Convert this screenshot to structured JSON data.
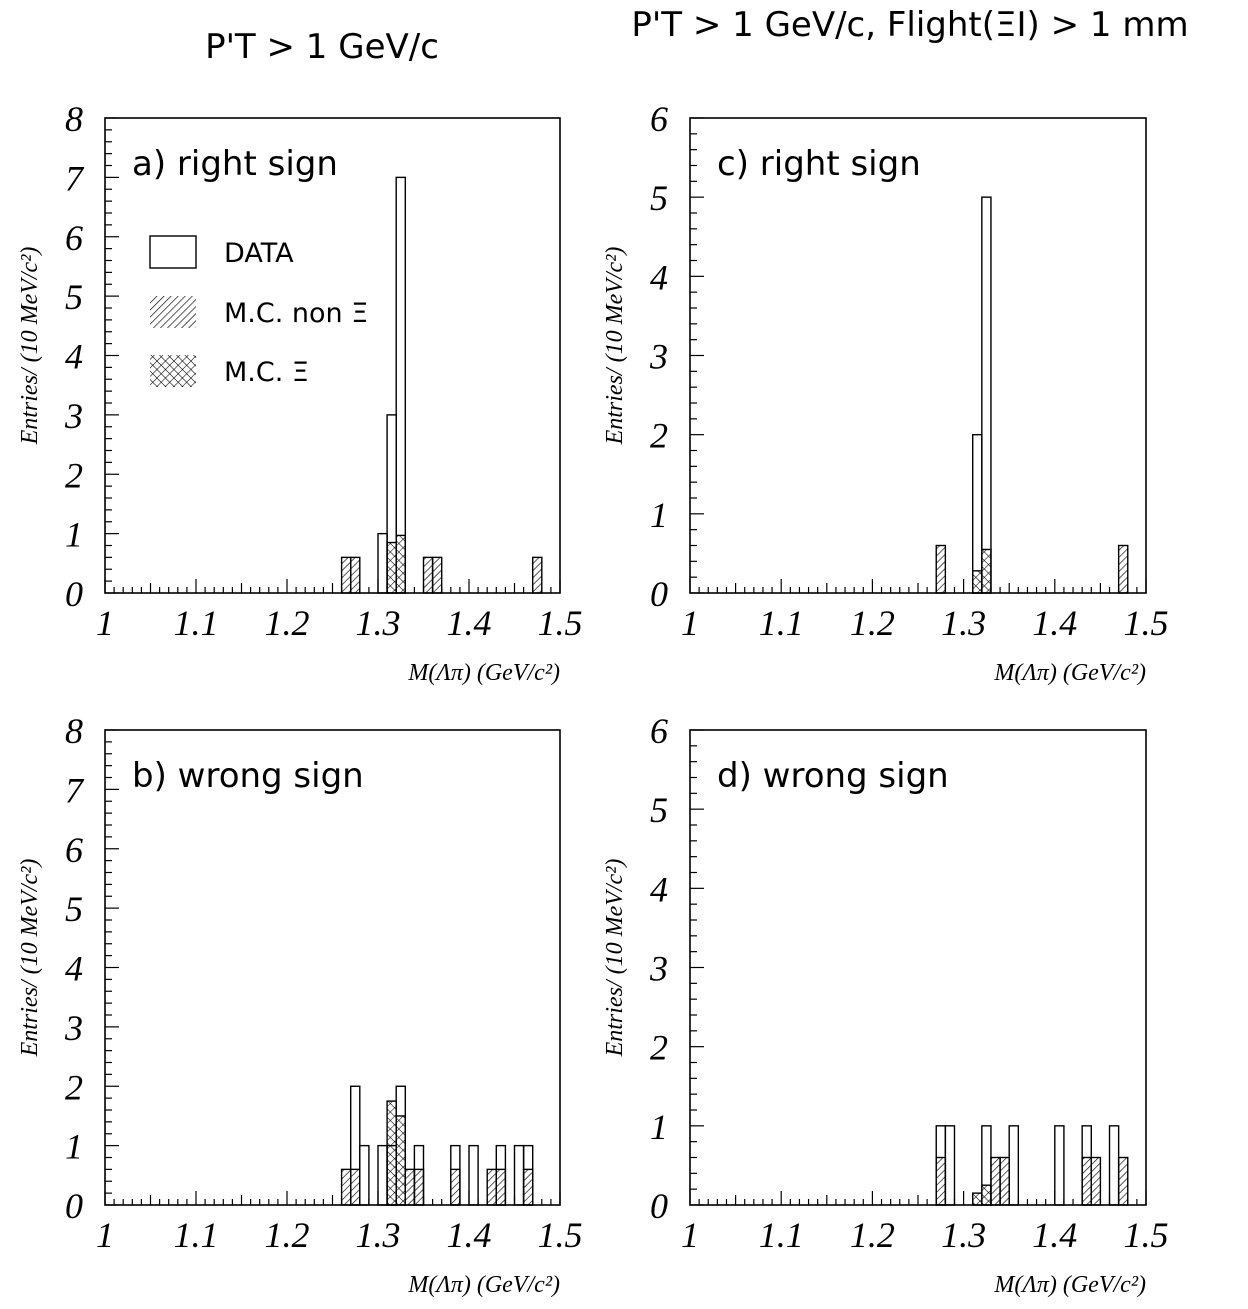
{
  "header": {
    "left_title": "P'T > 1 GeV/c",
    "right_title": "P'T > 1 GeV/c, Flight(ΞI) > 1 mm"
  },
  "legend": {
    "data": "DATA",
    "mc_non_xi": "M.C. non Ξ",
    "mc_xi": "M.C. Ξ"
  },
  "colors": {
    "ink": "#000000",
    "background": "#ffffff"
  },
  "chart_data": [
    {
      "id": "a",
      "type": "bar",
      "panel_label": "a)  right sign",
      "xlabel": "M(Λπ) (GeV/c²)",
      "ylabel": "Entries/ (10 MeV/c²)",
      "xlim": [
        1.0,
        1.5
      ],
      "ylim": [
        0,
        8
      ],
      "x_ticks": [
        "1",
        "1.1",
        "1.2",
        "1.3",
        "1.4",
        "1.5"
      ],
      "y_ticks": [
        "0",
        "1",
        "2",
        "3",
        "4",
        "5",
        "6",
        "7",
        "8"
      ],
      "bin_width": 0.01,
      "show_legend": true,
      "series": [
        {
          "name": "DATA",
          "style": "outline",
          "bins": [
            [
              1.3,
              1
            ],
            [
              1.31,
              3
            ],
            [
              1.32,
              7
            ]
          ]
        },
        {
          "name": "M.C. non Ξ",
          "style": "hatch",
          "bins": [
            [
              1.26,
              0.6
            ],
            [
              1.27,
              0.6
            ],
            [
              1.35,
              0.6
            ],
            [
              1.36,
              0.6
            ],
            [
              1.47,
              0.6
            ]
          ]
        },
        {
          "name": "M.C. Ξ",
          "style": "crosshatch",
          "bins": [
            [
              1.31,
              0.85
            ],
            [
              1.32,
              0.97
            ]
          ]
        }
      ]
    },
    {
      "id": "c",
      "type": "bar",
      "panel_label": "c)  right sign",
      "xlabel": "M(Λπ) (GeV/c²)",
      "ylabel": "Entries/ (10 MeV/c²)",
      "xlim": [
        1.0,
        1.5
      ],
      "ylim": [
        0,
        6
      ],
      "x_ticks": [
        "1",
        "1.1",
        "1.2",
        "1.3",
        "1.4",
        "1.5"
      ],
      "y_ticks": [
        "0",
        "1",
        "2",
        "3",
        "4",
        "5",
        "6"
      ],
      "bin_width": 0.01,
      "show_legend": false,
      "series": [
        {
          "name": "DATA",
          "style": "outline",
          "bins": [
            [
              1.31,
              2
            ],
            [
              1.32,
              5
            ]
          ]
        },
        {
          "name": "M.C. non Ξ",
          "style": "hatch",
          "bins": [
            [
              1.27,
              0.6
            ],
            [
              1.47,
              0.6
            ]
          ]
        },
        {
          "name": "M.C. Ξ",
          "style": "crosshatch",
          "bins": [
            [
              1.31,
              0.28
            ],
            [
              1.32,
              0.55
            ]
          ]
        }
      ]
    },
    {
      "id": "b",
      "type": "bar",
      "panel_label": "b)  wrong sign",
      "xlabel": "M(Λπ) (GeV/c²)",
      "ylabel": "Entries/ (10 MeV/c²)",
      "xlim": [
        1.0,
        1.5
      ],
      "ylim": [
        0,
        8
      ],
      "x_ticks": [
        "1",
        "1.1",
        "1.2",
        "1.3",
        "1.4",
        "1.5"
      ],
      "y_ticks": [
        "0",
        "1",
        "2",
        "3",
        "4",
        "5",
        "6",
        "7",
        "8"
      ],
      "bin_width": 0.01,
      "show_legend": false,
      "series": [
        {
          "name": "DATA",
          "style": "outline",
          "bins": [
            [
              1.27,
              2
            ],
            [
              1.28,
              1
            ],
            [
              1.3,
              1
            ],
            [
              1.31,
              1
            ],
            [
              1.32,
              2
            ],
            [
              1.34,
              1
            ],
            [
              1.38,
              1
            ],
            [
              1.4,
              1
            ],
            [
              1.43,
              1
            ],
            [
              1.45,
              1
            ],
            [
              1.46,
              1
            ]
          ]
        },
        {
          "name": "M.C. non Ξ",
          "style": "hatch",
          "bins": [
            [
              1.26,
              0.6
            ],
            [
              1.27,
              0.6
            ],
            [
              1.33,
              0.6
            ],
            [
              1.34,
              0.6
            ],
            [
              1.38,
              0.6
            ],
            [
              1.42,
              0.6
            ],
            [
              1.43,
              0.6
            ],
            [
              1.46,
              0.6
            ]
          ]
        },
        {
          "name": "M.C. Ξ",
          "style": "crosshatch",
          "bins": [
            [
              1.31,
              1.75
            ],
            [
              1.32,
              1.5
            ]
          ]
        }
      ]
    },
    {
      "id": "d",
      "type": "bar",
      "panel_label": "d)  wrong sign",
      "xlabel": "M(Λπ) (GeV/c²)",
      "ylabel": "Entries/ (10 MeV/c²)",
      "xlim": [
        1.0,
        1.5
      ],
      "ylim": [
        0,
        6
      ],
      "x_ticks": [
        "1",
        "1.1",
        "1.2",
        "1.3",
        "1.4",
        "1.5"
      ],
      "y_ticks": [
        "0",
        "1",
        "2",
        "3",
        "4",
        "5",
        "6"
      ],
      "bin_width": 0.01,
      "show_legend": false,
      "series": [
        {
          "name": "DATA",
          "style": "outline",
          "bins": [
            [
              1.27,
              1
            ],
            [
              1.28,
              1
            ],
            [
              1.32,
              1
            ],
            [
              1.35,
              1
            ],
            [
              1.4,
              1
            ],
            [
              1.43,
              1
            ],
            [
              1.46,
              1
            ]
          ]
        },
        {
          "name": "M.C. non Ξ",
          "style": "hatch",
          "bins": [
            [
              1.27,
              0.6
            ],
            [
              1.33,
              0.6
            ],
            [
              1.34,
              0.6
            ],
            [
              1.43,
              0.6
            ],
            [
              1.44,
              0.6
            ],
            [
              1.47,
              0.6
            ]
          ]
        },
        {
          "name": "M.C. Ξ",
          "style": "crosshatch",
          "bins": [
            [
              1.31,
              0.15
            ],
            [
              1.32,
              0.25
            ]
          ]
        }
      ]
    }
  ]
}
